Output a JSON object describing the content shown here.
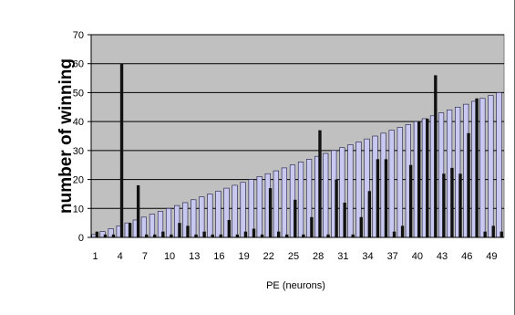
{
  "chart_data": {
    "type": "bar",
    "xlabel": "PE (neurons)",
    "ylabel": "number of winning",
    "ylim": [
      0,
      70
    ],
    "yticks": [
      0,
      10,
      20,
      30,
      40,
      50,
      60,
      70
    ],
    "xticks": [
      1,
      4,
      7,
      10,
      13,
      16,
      19,
      22,
      25,
      28,
      31,
      34,
      37,
      40,
      43,
      46,
      49
    ],
    "grid": true,
    "legend": "none",
    "plot_background": "#c0c0c0",
    "categories": [
      1,
      2,
      3,
      4,
      5,
      6,
      7,
      8,
      9,
      10,
      11,
      12,
      13,
      14,
      15,
      16,
      17,
      18,
      19,
      20,
      21,
      22,
      23,
      24,
      25,
      26,
      27,
      28,
      29,
      30,
      31,
      32,
      33,
      34,
      35,
      36,
      37,
      38,
      39,
      40,
      41,
      42,
      43,
      44,
      45,
      46,
      47,
      48,
      49,
      50
    ],
    "series": [
      {
        "color": "#c8c8f0",
        "stroke": "#1a1a40",
        "values": [
          1,
          2,
          3,
          4,
          5,
          6,
          7,
          8,
          9,
          10,
          11,
          12,
          13,
          14,
          15,
          16,
          17,
          18,
          19,
          20,
          21,
          22,
          23,
          24,
          25,
          26,
          27,
          28,
          29,
          30,
          31,
          32,
          33,
          34,
          35,
          36,
          37,
          38,
          39,
          40,
          41,
          42,
          43,
          44,
          45,
          46,
          47,
          48,
          49,
          50
        ]
      },
      {
        "color": "#111111",
        "stroke": "#111111",
        "values": [
          2,
          1,
          1,
          60,
          5,
          18,
          1,
          1,
          2,
          1,
          5,
          4,
          1,
          2,
          1,
          1,
          6,
          1,
          2,
          3,
          1,
          17,
          2,
          1,
          13,
          1,
          7,
          37,
          1,
          20,
          12,
          1,
          7,
          16,
          27,
          27,
          2,
          4,
          25,
          40,
          41,
          56,
          22,
          24,
          22,
          36,
          48,
          2,
          4,
          2
        ]
      }
    ]
  }
}
